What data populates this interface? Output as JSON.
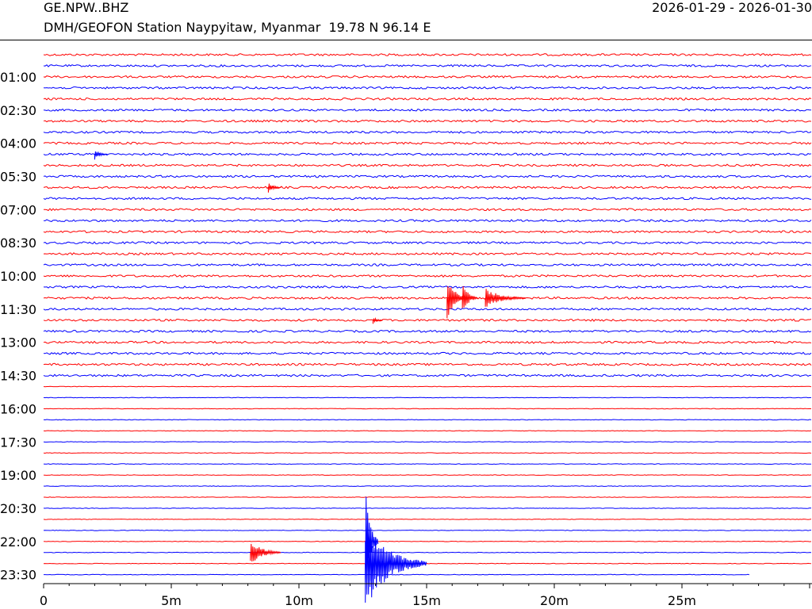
{
  "header": {
    "station_code": "GE.NPW..BHZ",
    "date_range": "2026-01-29 - 2026-01-30",
    "station_description": "DMH/GEOFON Station Naypyitaw, Myanmar  19.78 N 96.14 E"
  },
  "chart_data": {
    "type": "line",
    "subtype": "helicorder",
    "title": "GE.NPW..BHZ",
    "xlabel": "",
    "ylabel": "",
    "x_range_minutes": [
      0,
      30
    ],
    "x_ticks": [
      {
        "value": 0,
        "label": "0"
      },
      {
        "value": 5,
        "label": "5m"
      },
      {
        "value": 10,
        "label": "10m"
      },
      {
        "value": 15,
        "label": "15m"
      },
      {
        "value": 20,
        "label": "20m"
      },
      {
        "value": 25,
        "label": "25m"
      }
    ],
    "x_minor_tick_interval_minutes": 1,
    "trace_count": 48,
    "trace_duration_minutes": 30,
    "trace_colors": [
      "#ff0000",
      "#0000ff"
    ],
    "y_labels": [
      "01:00",
      "02:30",
      "04:00",
      "05:30",
      "07:00",
      "08:30",
      "10:00",
      "11:30",
      "13:00",
      "14:30",
      "16:00",
      "17:30",
      "19:00",
      "20:30",
      "22:00",
      "23:30"
    ],
    "trace_end_minute": 27.7,
    "grid": false,
    "legend": "none",
    "events": [
      {
        "trace": 9,
        "minute": 2.0,
        "amplitude": 7,
        "duration": 0.5,
        "color": "#0000ff"
      },
      {
        "trace": 12,
        "minute": 8.8,
        "amplitude": 7,
        "duration": 0.5,
        "color": "#ff0000"
      },
      {
        "trace": 22,
        "minute": 15.8,
        "amplitude": 28,
        "duration": 0.8,
        "color": "#ff0000"
      },
      {
        "trace": 22,
        "minute": 16.4,
        "amplitude": 22,
        "duration": 0.6,
        "color": "#ff0000"
      },
      {
        "trace": 22,
        "minute": 17.3,
        "amplitude": 13,
        "duration": 1.6,
        "color": "#ff0000"
      },
      {
        "trace": 24,
        "minute": 12.9,
        "amplitude": 5,
        "duration": 0.4,
        "color": "#ff0000"
      },
      {
        "trace": 45,
        "minute": 8.1,
        "amplitude": 16,
        "duration": 1.2,
        "color": "#ff0000"
      },
      {
        "trace": 44,
        "minute": 12.6,
        "amplitude": 72,
        "duration": 0.5,
        "color": "#0000ff"
      },
      {
        "trace": 46,
        "minute": 12.6,
        "amplitude": 60,
        "duration": 2.4,
        "color": "#0000ff"
      },
      {
        "trace": 46,
        "minute": 12.6,
        "amplitude": 28,
        "duration": 2.2,
        "color": "#0000ff"
      }
    ]
  }
}
